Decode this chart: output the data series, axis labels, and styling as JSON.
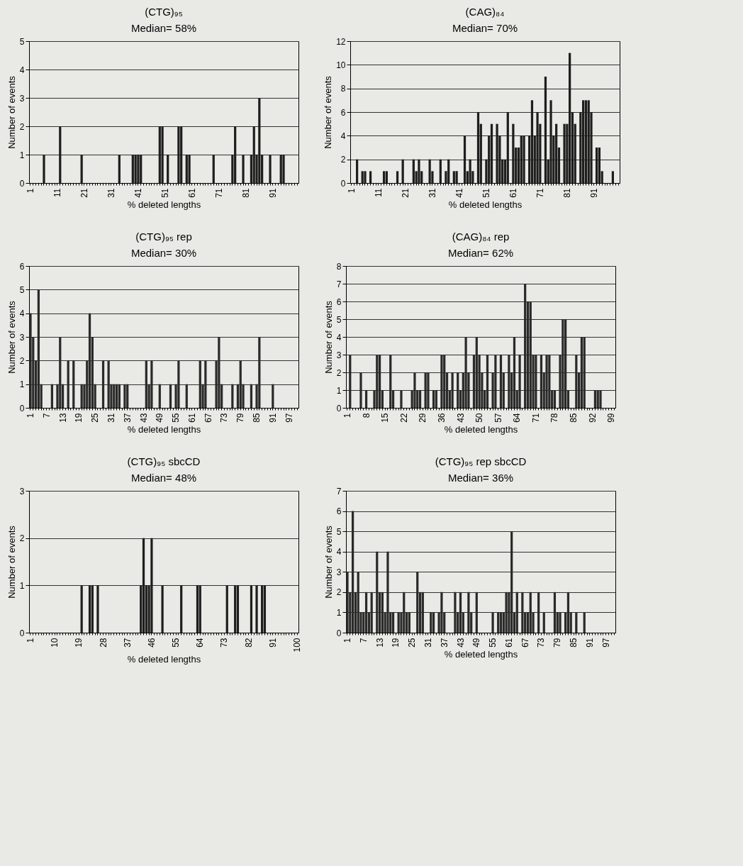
{
  "chart_data": [
    {
      "type": "bar",
      "title": "(CTG)₉₅",
      "subtitle": "Median= 58%",
      "xlabel": "% deleted lengths",
      "ylabel": "Number of events",
      "color": "#1e1e1e",
      "grid": "y",
      "ylim": [
        0,
        5
      ],
      "yticks": [
        0,
        1,
        2,
        3,
        4,
        5
      ],
      "categories": [
        "1",
        null,
        null,
        null,
        null,
        null,
        null,
        null,
        null,
        null,
        "11",
        null,
        null,
        null,
        null,
        null,
        null,
        null,
        null,
        null,
        "21",
        null,
        null,
        null,
        null,
        null,
        null,
        null,
        null,
        null,
        "31",
        null,
        null,
        null,
        null,
        null,
        null,
        null,
        null,
        null,
        "41",
        null,
        null,
        null,
        null,
        null,
        null,
        null,
        null,
        null,
        "51",
        null,
        null,
        null,
        null,
        null,
        null,
        null,
        null,
        null,
        "61",
        null,
        null,
        null,
        null,
        null,
        null,
        null,
        null,
        null,
        "71",
        null,
        null,
        null,
        null,
        null,
        null,
        null,
        null,
        null,
        "81",
        null,
        null,
        null,
        null,
        null,
        null,
        null,
        null,
        null,
        "91",
        null,
        null,
        null,
        null,
        null,
        null,
        null,
        null,
        null
      ],
      "values": [
        0,
        0,
        0,
        0,
        0,
        1,
        0,
        0,
        0,
        0,
        0,
        2,
        0,
        0,
        0,
        0,
        0,
        0,
        0,
        1,
        0,
        0,
        0,
        0,
        0,
        0,
        0,
        0,
        0,
        0,
        0,
        0,
        0,
        1,
        0,
        0,
        0,
        0,
        1,
        1,
        1,
        1,
        0,
        0,
        0,
        0,
        0,
        0,
        2,
        2,
        0,
        1,
        0,
        0,
        0,
        2,
        2,
        0,
        1,
        1,
        0,
        0,
        0,
        0,
        0,
        0,
        0,
        0,
        1,
        0,
        0,
        0,
        0,
        0,
        0,
        1,
        2,
        0,
        0,
        1,
        0,
        0,
        1,
        2,
        1,
        3,
        1,
        0,
        0,
        1,
        0,
        0,
        0,
        1,
        1,
        0,
        0,
        0,
        0,
        0
      ]
    },
    {
      "type": "bar",
      "title": "(CAG)₈₄",
      "subtitle": "Median= 70%",
      "xlabel": "% deleted lengths",
      "ylabel": "Number of events",
      "color": "#1e1e1e",
      "grid": "y",
      "ylim": [
        0,
        12
      ],
      "yticks": [
        0,
        2,
        4,
        6,
        8,
        10,
        12
      ],
      "categories": [
        "1",
        null,
        null,
        null,
        null,
        null,
        null,
        null,
        null,
        null,
        "11",
        null,
        null,
        null,
        null,
        null,
        null,
        null,
        null,
        null,
        "21",
        null,
        null,
        null,
        null,
        null,
        null,
        null,
        null,
        null,
        "31",
        null,
        null,
        null,
        null,
        null,
        null,
        null,
        null,
        null,
        "41",
        null,
        null,
        null,
        null,
        null,
        null,
        null,
        null,
        null,
        "51",
        null,
        null,
        null,
        null,
        null,
        null,
        null,
        null,
        null,
        "61",
        null,
        null,
        null,
        null,
        null,
        null,
        null,
        null,
        null,
        "71",
        null,
        null,
        null,
        null,
        null,
        null,
        null,
        null,
        null,
        "81",
        null,
        null,
        null,
        null,
        null,
        null,
        null,
        null,
        null,
        "91",
        null,
        null,
        null,
        null,
        null,
        null,
        null,
        null,
        null
      ],
      "values": [
        0,
        0,
        2,
        0,
        1,
        1,
        0,
        1,
        0,
        0,
        0,
        0,
        1,
        1,
        0,
        0,
        0,
        1,
        0,
        2,
        0,
        0,
        0,
        2,
        1,
        2,
        1,
        0,
        0,
        2,
        1,
        0,
        0,
        2,
        0,
        1,
        2,
        0,
        1,
        1,
        0,
        0,
        4,
        1,
        2,
        1,
        0,
        6,
        5,
        0,
        2,
        4,
        5,
        0,
        5,
        4,
        2,
        2,
        6,
        0,
        5,
        3,
        3,
        4,
        4,
        0,
        4,
        7,
        4,
        6,
        5,
        0,
        9,
        2,
        7,
        4,
        5,
        3,
        0,
        5,
        5,
        11,
        6,
        5,
        0,
        6,
        7,
        7,
        7,
        6,
        0,
        3,
        3,
        1,
        0,
        0,
        0,
        1,
        0,
        0
      ]
    },
    {
      "type": "bar",
      "title": "(CTG)₉₅ rep",
      "subtitle": "Median= 30%",
      "xlabel": "% deleted lengths",
      "ylabel": "Number of events",
      "color": "#2a2a2a",
      "grid": "y",
      "ylim": [
        0,
        6
      ],
      "yticks": [
        0,
        1,
        2,
        3,
        4,
        5,
        6
      ],
      "categories": [
        "1",
        null,
        null,
        null,
        null,
        null,
        "7",
        null,
        null,
        null,
        null,
        null,
        "13",
        null,
        null,
        null,
        null,
        null,
        "19",
        null,
        null,
        null,
        null,
        null,
        "25",
        null,
        null,
        null,
        null,
        null,
        "31",
        null,
        null,
        null,
        null,
        null,
        "37",
        null,
        null,
        null,
        null,
        null,
        "43",
        null,
        null,
        null,
        null,
        null,
        "49",
        null,
        null,
        null,
        null,
        null,
        "55",
        null,
        null,
        null,
        null,
        null,
        "61",
        null,
        null,
        null,
        null,
        null,
        "67",
        null,
        null,
        null,
        null,
        null,
        "73",
        null,
        null,
        null,
        null,
        null,
        "79",
        null,
        null,
        null,
        null,
        null,
        "85",
        null,
        null,
        null,
        null,
        null,
        "91",
        null,
        null,
        null,
        null,
        null,
        "97",
        null,
        null,
        null
      ],
      "values": [
        4,
        3,
        2,
        5,
        1,
        0,
        0,
        0,
        1,
        0,
        1,
        3,
        1,
        0,
        2,
        0,
        2,
        0,
        0,
        1,
        1,
        2,
        4,
        3,
        1,
        0,
        0,
        2,
        0,
        2,
        1,
        1,
        1,
        1,
        0,
        1,
        1,
        0,
        0,
        0,
        0,
        0,
        0,
        2,
        1,
        2,
        0,
        0,
        1,
        0,
        0,
        0,
        1,
        0,
        1,
        2,
        0,
        0,
        1,
        0,
        0,
        0,
        0,
        2,
        1,
        2,
        0,
        0,
        0,
        2,
        3,
        1,
        0,
        0,
        0,
        1,
        0,
        1,
        2,
        1,
        0,
        0,
        1,
        0,
        1,
        3,
        0,
        0,
        0,
        0,
        1,
        0,
        0,
        0,
        0,
        0,
        0,
        0,
        0,
        0
      ]
    },
    {
      "type": "bar",
      "title": "(CAG)₈₄ rep",
      "subtitle": "Median= 62%",
      "xlabel": "% deleted lengths",
      "ylabel": "Number of events",
      "color": "#2a2a2a",
      "grid": "y",
      "ylim": [
        0,
        8
      ],
      "yticks": [
        0,
        1,
        2,
        3,
        4,
        5,
        6,
        7,
        8
      ],
      "categories": [
        "1",
        null,
        null,
        null,
        null,
        null,
        null,
        "8",
        null,
        null,
        null,
        null,
        null,
        null,
        "15",
        null,
        null,
        null,
        null,
        null,
        null,
        "22",
        null,
        null,
        null,
        null,
        null,
        null,
        "29",
        null,
        null,
        null,
        null,
        null,
        null,
        "36",
        null,
        null,
        null,
        null,
        null,
        null,
        "43",
        null,
        null,
        null,
        null,
        null,
        null,
        "50",
        null,
        null,
        null,
        null,
        null,
        null,
        "57",
        null,
        null,
        null,
        null,
        null,
        null,
        "64",
        null,
        null,
        null,
        null,
        null,
        null,
        "71",
        null,
        null,
        null,
        null,
        null,
        null,
        "78",
        null,
        null,
        null,
        null,
        null,
        null,
        "85",
        null,
        null,
        null,
        null,
        null,
        null,
        "92",
        null,
        null,
        null,
        null,
        null,
        null,
        "99",
        null
      ],
      "values": [
        0,
        3,
        0,
        0,
        0,
        2,
        0,
        1,
        0,
        0,
        1,
        3,
        3,
        1,
        0,
        0,
        3,
        1,
        0,
        0,
        1,
        0,
        0,
        0,
        1,
        2,
        1,
        1,
        0,
        2,
        2,
        0,
        1,
        1,
        0,
        3,
        3,
        2,
        1,
        2,
        0,
        2,
        1,
        2,
        4,
        2,
        0,
        3,
        4,
        3,
        2,
        1,
        3,
        0,
        2,
        3,
        0,
        3,
        2,
        0,
        3,
        2,
        4,
        1,
        3,
        0,
        7,
        6,
        6,
        3,
        3,
        0,
        3,
        2,
        3,
        3,
        1,
        1,
        0,
        3,
        5,
        5,
        1,
        0,
        0,
        3,
        2,
        4,
        4,
        0,
        0,
        0,
        1,
        1,
        1,
        0,
        0,
        0,
        0,
        0
      ]
    },
    {
      "type": "bar",
      "title": "(CTG)₉₅ sbcCD",
      "subtitle": "Median= 48%",
      "xlabel": "% deleted lengths",
      "ylabel": "Number of events",
      "color": "#1e1e1e",
      "grid": "y",
      "ylim": [
        0,
        3
      ],
      "yticks": [
        0,
        1,
        2,
        3
      ],
      "categories": [
        "1",
        null,
        null,
        null,
        null,
        null,
        null,
        null,
        null,
        "10",
        null,
        null,
        null,
        null,
        null,
        null,
        null,
        null,
        "19",
        null,
        null,
        null,
        null,
        null,
        null,
        null,
        null,
        "28",
        null,
        null,
        null,
        null,
        null,
        null,
        null,
        null,
        "37",
        null,
        null,
        null,
        null,
        null,
        null,
        null,
        null,
        "46",
        null,
        null,
        null,
        null,
        null,
        null,
        null,
        null,
        "55",
        null,
        null,
        null,
        null,
        null,
        null,
        null,
        null,
        "64",
        null,
        null,
        null,
        null,
        null,
        null,
        null,
        null,
        "73",
        null,
        null,
        null,
        null,
        null,
        null,
        null,
        null,
        "82",
        null,
        null,
        null,
        null,
        null,
        null,
        null,
        null,
        "91",
        null,
        null,
        null,
        null,
        null,
        null,
        null,
        null,
        "100"
      ],
      "values": [
        0,
        0,
        0,
        0,
        0,
        0,
        0,
        0,
        0,
        0,
        0,
        0,
        0,
        0,
        0,
        0,
        0,
        0,
        0,
        1,
        0,
        0,
        1,
        1,
        0,
        1,
        0,
        0,
        0,
        0,
        0,
        0,
        0,
        0,
        0,
        0,
        0,
        0,
        0,
        0,
        0,
        1,
        2,
        1,
        1,
        2,
        0,
        0,
        0,
        1,
        0,
        0,
        0,
        0,
        0,
        0,
        1,
        0,
        0,
        0,
        0,
        0,
        1,
        1,
        0,
        0,
        0,
        0,
        0,
        0,
        0,
        0,
        0,
        1,
        0,
        0,
        1,
        1,
        0,
        0,
        0,
        0,
        1,
        0,
        1,
        0,
        1,
        1,
        0,
        0,
        0,
        0,
        0,
        0,
        0,
        0,
        0,
        0,
        0,
        0
      ]
    },
    {
      "type": "bar",
      "title": "(CTG)₉₅ rep sbcCD",
      "subtitle": "Median= 36%",
      "xlabel": "% deleted lengths",
      "ylabel": "Number of events",
      "color": "#2a2a2a",
      "grid": "y",
      "ylim": [
        0,
        7
      ],
      "yticks": [
        0,
        1,
        2,
        3,
        4,
        5,
        6,
        7
      ],
      "categories": [
        "1",
        null,
        null,
        null,
        null,
        null,
        "7",
        null,
        null,
        null,
        null,
        null,
        "13",
        null,
        null,
        null,
        null,
        null,
        "19",
        null,
        null,
        null,
        null,
        null,
        "25",
        null,
        null,
        null,
        null,
        null,
        "31",
        null,
        null,
        null,
        null,
        null,
        "37",
        null,
        null,
        null,
        null,
        null,
        "43",
        null,
        null,
        null,
        null,
        null,
        "49",
        null,
        null,
        null,
        null,
        null,
        "55",
        null,
        null,
        null,
        null,
        null,
        "61",
        null,
        null,
        null,
        null,
        null,
        "67",
        null,
        null,
        null,
        null,
        null,
        "73",
        null,
        null,
        null,
        null,
        null,
        "79",
        null,
        null,
        null,
        null,
        null,
        "85",
        null,
        null,
        null,
        null,
        null,
        "91",
        null,
        null,
        null,
        null,
        null,
        "97",
        null,
        null,
        null
      ],
      "values": [
        3,
        2,
        6,
        2,
        3,
        1,
        1,
        2,
        1,
        2,
        0,
        4,
        2,
        2,
        1,
        4,
        1,
        1,
        0,
        1,
        1,
        2,
        1,
        1,
        0,
        0,
        3,
        2,
        2,
        0,
        0,
        1,
        1,
        0,
        1,
        2,
        1,
        0,
        0,
        0,
        2,
        1,
        2,
        1,
        0,
        2,
        1,
        0,
        2,
        0,
        0,
        0,
        0,
        0,
        1,
        0,
        1,
        1,
        1,
        2,
        2,
        5,
        1,
        2,
        0,
        2,
        1,
        1,
        2,
        1,
        0,
        2,
        0,
        1,
        0,
        0,
        0,
        2,
        1,
        1,
        0,
        1,
        2,
        1,
        0,
        1,
        0,
        0,
        1,
        0,
        0,
        0,
        0,
        0,
        0,
        0,
        0,
        0,
        0,
        0
      ]
    }
  ]
}
